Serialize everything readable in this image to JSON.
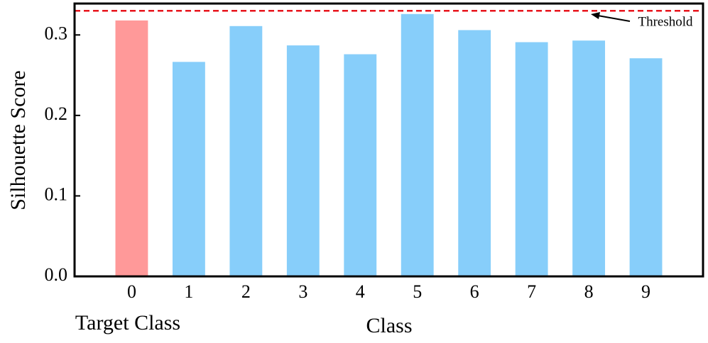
{
  "chart_data": {
    "type": "bar",
    "x_label": "Class",
    "y_label": "Silhouette Score",
    "categories": [
      "0",
      "1",
      "2",
      "3",
      "4",
      "5",
      "6",
      "7",
      "8",
      "9"
    ],
    "category_annotation": "Target Class",
    "values": [
      0.318,
      0.2665,
      0.311,
      0.287,
      0.276,
      0.326,
      0.306,
      0.291,
      0.293,
      0.271
    ],
    "colors": [
      "#ff9999",
      "#87cefa",
      "#87cefa",
      "#87cefa",
      "#87cefa",
      "#87cefa",
      "#87cefa",
      "#87cefa",
      "#87cefa",
      "#87cefa"
    ],
    "ylim": [
      0,
      0.339
    ],
    "yticks": [
      {
        "value": 0,
        "label": "0.0"
      },
      0.1,
      0.2,
      0.3
    ],
    "threshold": {
      "value": 0.33,
      "label": "Threshold",
      "color": "#e8141c"
    }
  }
}
